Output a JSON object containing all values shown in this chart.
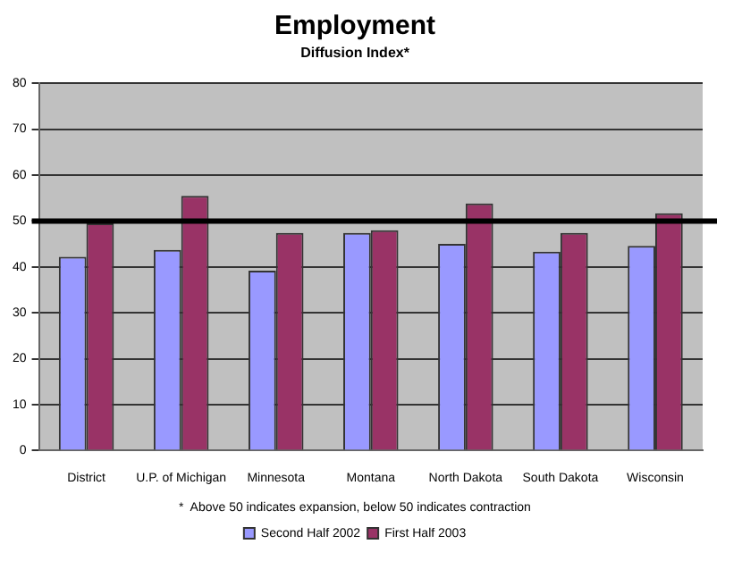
{
  "chart_data": {
    "type": "bar",
    "title": "Employment",
    "subtitle": "Diffusion Index*",
    "categories": [
      "District",
      "U.P. of Michigan",
      "Minnesota",
      "Montana",
      "North Dakota",
      "South Dakota",
      "Wisconsin"
    ],
    "series": [
      {
        "name": "Second Half 2002",
        "color": "#9999ff",
        "values": [
          42.2,
          43.7,
          39.2,
          47.4,
          45,
          43.3,
          44.6
        ]
      },
      {
        "name": "First Half 2003",
        "color": "#993366",
        "values": [
          49.5,
          55.5,
          47.4,
          48,
          53.8,
          47.4,
          51.7
        ]
      }
    ],
    "ylim": [
      0,
      80
    ],
    "yticks": [
      0,
      10,
      20,
      30,
      40,
      50,
      60,
      70,
      80
    ],
    "grid": "y",
    "legend": "bottom",
    "ref_lines": [
      {
        "axis": "y",
        "value": 50,
        "color": "#000000"
      }
    ],
    "annotations": [
      "*  Above 50 indicates expansion, below 50 indicates contraction"
    ]
  }
}
